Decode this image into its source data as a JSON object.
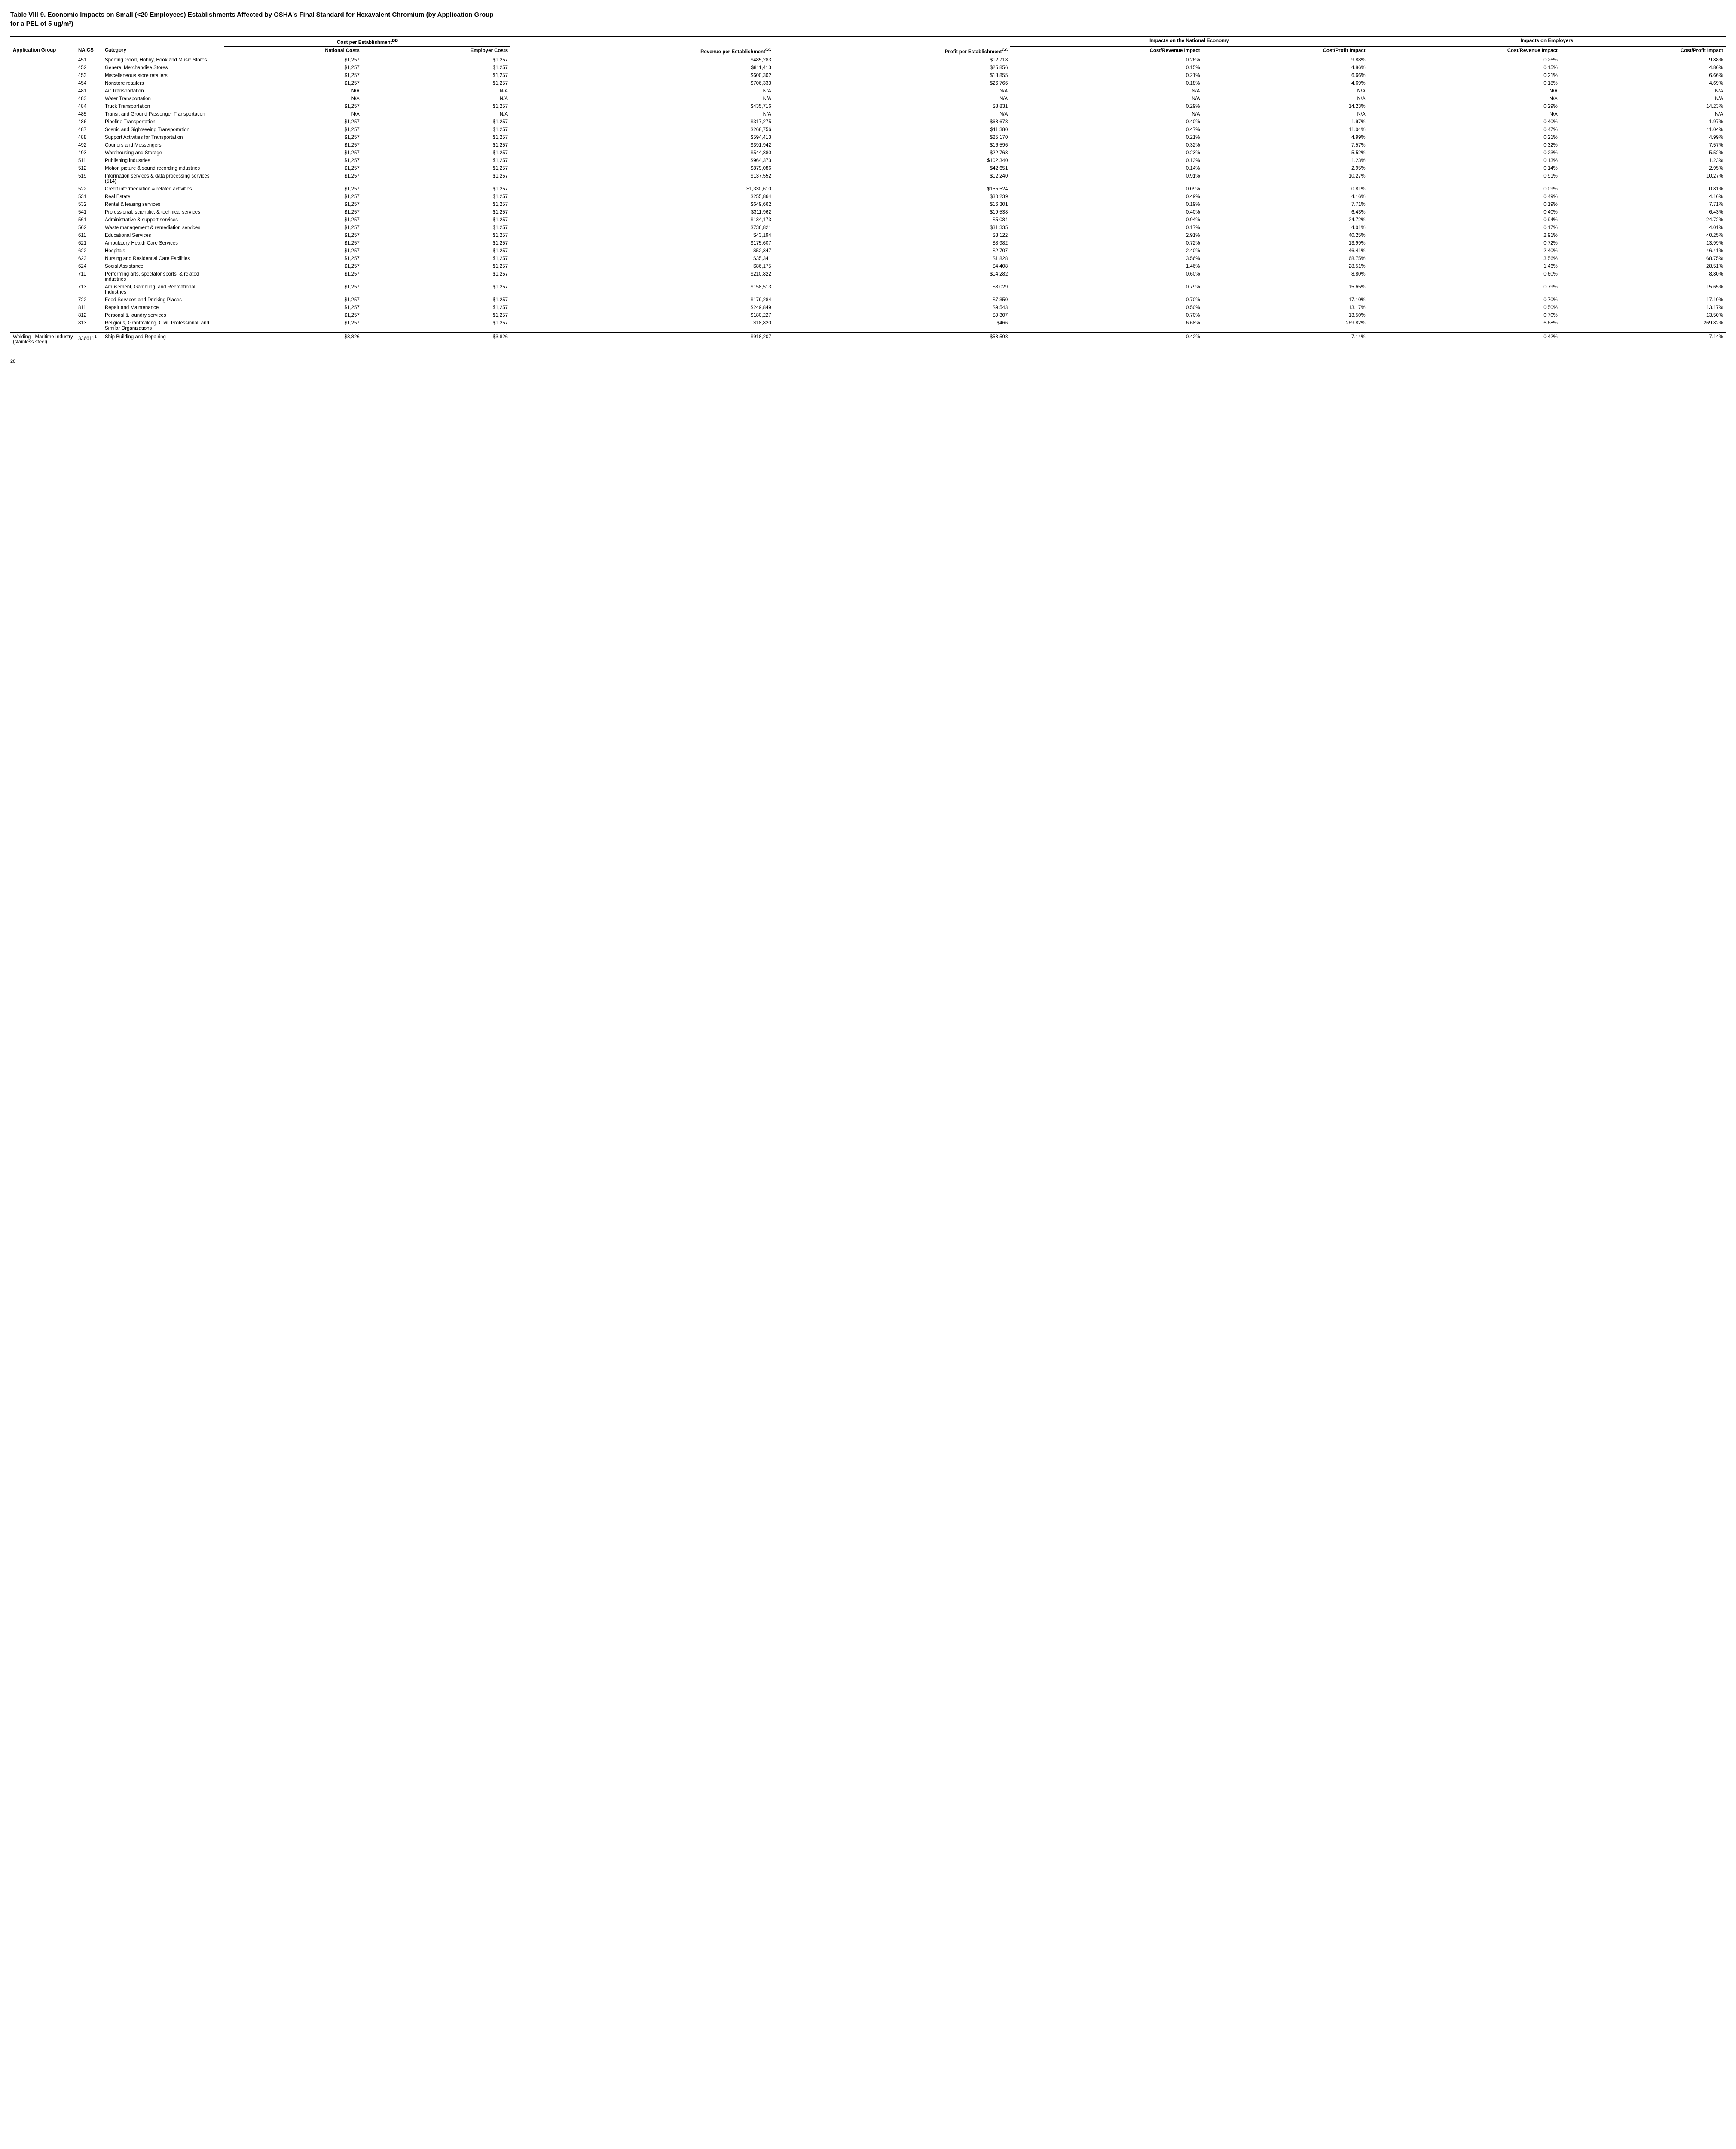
{
  "title_line1": "Table VIII-9.  Economic Impacts on Small (<20 Employees) Establishments Affected by OSHA's Final Standard for Hexavalent Chromium (by Application Group",
  "title_line2": "for a PEL of 5 ug/m³)",
  "page_number": "28",
  "group_headers": {
    "cost_per_est": "Cost per Establishment",
    "cost_per_est_sup": "BB",
    "impacts_national": "Impacts on the National Economy",
    "impacts_employers": "Impacts on Employers"
  },
  "col_headers": {
    "appgroup": "Application Group",
    "naics": "NAICS",
    "category": "Category",
    "national_costs": "National Costs",
    "employer_costs": "Employer Costs",
    "revenue_per_est": "Revenue per Establishment",
    "revenue_per_est_sup": "CC",
    "profit_per_est": "Profit per Establishment",
    "profit_per_est_sup": "CC",
    "cost_rev_impact_n": "Cost/Revenue Impact",
    "cost_profit_impact_n": "Cost/Profit Impact",
    "cost_rev_impact_e": "Cost/Revenue Impact",
    "cost_profit_impact_e": "Cost/Profit Impact"
  },
  "rows": [
    {
      "appgroup": "",
      "naics": "451",
      "category": "Sporting Good, Hobby, Book and Music Stores",
      "nat": "$1,257",
      "emp": "$1,257",
      "rev": "$485,283",
      "profit": "$12,718",
      "crn": "0.26%",
      "cpn": "9.88%",
      "cre": "0.26%",
      "cpe": "9.88%"
    },
    {
      "appgroup": "",
      "naics": "452",
      "category": "General Merchandise Stores",
      "nat": "$1,257",
      "emp": "$1,257",
      "rev": "$811,413",
      "profit": "$25,856",
      "crn": "0.15%",
      "cpn": "4.86%",
      "cre": "0.15%",
      "cpe": "4.86%"
    },
    {
      "appgroup": "",
      "naics": "453",
      "category": "Miscellaneous store retailers",
      "nat": "$1,257",
      "emp": "$1,257",
      "rev": "$600,302",
      "profit": "$18,855",
      "crn": "0.21%",
      "cpn": "6.66%",
      "cre": "0.21%",
      "cpe": "6.66%"
    },
    {
      "appgroup": "",
      "naics": "454",
      "category": "Nonstore retailers",
      "nat": "$1,257",
      "emp": "$1,257",
      "rev": "$706,333",
      "profit": "$26,766",
      "crn": "0.18%",
      "cpn": "4.69%",
      "cre": "0.18%",
      "cpe": "4.69%"
    },
    {
      "appgroup": "",
      "naics": "481",
      "category": "Air Transportation",
      "nat": "N/A",
      "emp": "N/A",
      "rev": "N/A",
      "profit": "N/A",
      "crn": "N/A",
      "cpn": "N/A",
      "cre": "N/A",
      "cpe": "N/A"
    },
    {
      "appgroup": "",
      "naics": "483",
      "category": "Water Transportation",
      "nat": "N/A",
      "emp": "N/A",
      "rev": "N/A",
      "profit": "N/A",
      "crn": "N/A",
      "cpn": "N/A",
      "cre": "N/A",
      "cpe": "N/A"
    },
    {
      "appgroup": "",
      "naics": "484",
      "category": "Truck Transportation",
      "nat": "$1,257",
      "emp": "$1,257",
      "rev": "$435,716",
      "profit": "$8,831",
      "crn": "0.29%",
      "cpn": "14.23%",
      "cre": "0.29%",
      "cpe": "14.23%"
    },
    {
      "appgroup": "",
      "naics": "485",
      "category": "Transit and Ground Passenger Transportation",
      "nat": "N/A",
      "emp": "N/A",
      "rev": "N/A",
      "profit": "N/A",
      "crn": "N/A",
      "cpn": "N/A",
      "cre": "N/A",
      "cpe": "N/A"
    },
    {
      "appgroup": "",
      "naics": "486",
      "category": "Pipeline Transportation",
      "nat": "$1,257",
      "emp": "$1,257",
      "rev": "$317,275",
      "profit": "$63,678",
      "crn": "0.40%",
      "cpn": "1.97%",
      "cre": "0.40%",
      "cpe": "1.97%"
    },
    {
      "appgroup": "",
      "naics": "487",
      "category": "Scenic and Sightseeing Transportation",
      "nat": "$1,257",
      "emp": "$1,257",
      "rev": "$268,756",
      "profit": "$11,380",
      "crn": "0.47%",
      "cpn": "11.04%",
      "cre": "0.47%",
      "cpe": "11.04%"
    },
    {
      "appgroup": "",
      "naics": "488",
      "category": "Support Activities for Transportation",
      "nat": "$1,257",
      "emp": "$1,257",
      "rev": "$594,413",
      "profit": "$25,170",
      "crn": "0.21%",
      "cpn": "4.99%",
      "cre": "0.21%",
      "cpe": "4.99%"
    },
    {
      "appgroup": "",
      "naics": "492",
      "category": "Couriers and Messengers",
      "nat": "$1,257",
      "emp": "$1,257",
      "rev": "$391,942",
      "profit": "$16,596",
      "crn": "0.32%",
      "cpn": "7.57%",
      "cre": "0.32%",
      "cpe": "7.57%"
    },
    {
      "appgroup": "",
      "naics": "493",
      "category": "Warehousing and Storage",
      "nat": "$1,257",
      "emp": "$1,257",
      "rev": "$544,880",
      "profit": "$22,763",
      "crn": "0.23%",
      "cpn": "5.52%",
      "cre": "0.23%",
      "cpe": "5.52%"
    },
    {
      "appgroup": "",
      "naics": "511",
      "category": "Publishing industries",
      "nat": "$1,257",
      "emp": "$1,257",
      "rev": "$964,373",
      "profit": "$102,340",
      "crn": "0.13%",
      "cpn": "1.23%",
      "cre": "0.13%",
      "cpe": "1.23%"
    },
    {
      "appgroup": "",
      "naics": "512",
      "category": "Motion picture & sound recording industries",
      "nat": "$1,257",
      "emp": "$1,257",
      "rev": "$879,086",
      "profit": "$42,651",
      "crn": "0.14%",
      "cpn": "2.95%",
      "cre": "0.14%",
      "cpe": "2.95%"
    },
    {
      "appgroup": "",
      "naics": "519",
      "category": "Information services & data processing services (514)",
      "nat": "$1,257",
      "emp": "$1,257",
      "rev": "$137,552",
      "profit": "$12,240",
      "crn": "0.91%",
      "cpn": "10.27%",
      "cre": "0.91%",
      "cpe": "10.27%"
    },
    {
      "appgroup": "",
      "naics": "522",
      "category": "Credit intermediation & related activities",
      "nat": "$1,257",
      "emp": "$1,257",
      "rev": "$1,330,610",
      "profit": "$155,524",
      "crn": "0.09%",
      "cpn": "0.81%",
      "cre": "0.09%",
      "cpe": "0.81%"
    },
    {
      "appgroup": "",
      "naics": "531",
      "category": "Real Estate",
      "nat": "$1,257",
      "emp": "$1,257",
      "rev": "$255,864",
      "profit": "$30,239",
      "crn": "0.49%",
      "cpn": "4.16%",
      "cre": "0.49%",
      "cpe": "4.16%"
    },
    {
      "appgroup": "",
      "naics": "532",
      "category": "Rental & leasing services",
      "nat": "$1,257",
      "emp": "$1,257",
      "rev": "$649,662",
      "profit": "$16,301",
      "crn": "0.19%",
      "cpn": "7.71%",
      "cre": "0.19%",
      "cpe": "7.71%"
    },
    {
      "appgroup": "",
      "naics": "541",
      "category": "Professional, scientific, & technical services",
      "nat": "$1,257",
      "emp": "$1,257",
      "rev": "$311,962",
      "profit": "$19,538",
      "crn": "0.40%",
      "cpn": "6.43%",
      "cre": "0.40%",
      "cpe": "6.43%"
    },
    {
      "appgroup": "",
      "naics": "561",
      "category": "Administrative & support services",
      "nat": "$1,257",
      "emp": "$1,257",
      "rev": "$134,173",
      "profit": "$5,084",
      "crn": "0.94%",
      "cpn": "24.72%",
      "cre": "0.94%",
      "cpe": "24.72%"
    },
    {
      "appgroup": "",
      "naics": "562",
      "category": "Waste management & remediation services",
      "nat": "$1,257",
      "emp": "$1,257",
      "rev": "$736,821",
      "profit": "$31,335",
      "crn": "0.17%",
      "cpn": "4.01%",
      "cre": "0.17%",
      "cpe": "4.01%"
    },
    {
      "appgroup": "",
      "naics": "611",
      "category": "Educational Services",
      "nat": "$1,257",
      "emp": "$1,257",
      "rev": "$43,194",
      "profit": "$3,122",
      "crn": "2.91%",
      "cpn": "40.25%",
      "cre": "2.91%",
      "cpe": "40.25%"
    },
    {
      "appgroup": "",
      "naics": "621",
      "category": "Ambulatory Health Care Services",
      "nat": "$1,257",
      "emp": "$1,257",
      "rev": "$175,607",
      "profit": "$8,982",
      "crn": "0.72%",
      "cpn": "13.99%",
      "cre": "0.72%",
      "cpe": "13.99%"
    },
    {
      "appgroup": "",
      "naics": "622",
      "category": "Hospitals",
      "nat": "$1,257",
      "emp": "$1,257",
      "rev": "$52,347",
      "profit": "$2,707",
      "crn": "2.40%",
      "cpn": "46.41%",
      "cre": "2.40%",
      "cpe": "46.41%"
    },
    {
      "appgroup": "",
      "naics": "623",
      "category": "Nursing and Residential Care Facilities",
      "nat": "$1,257",
      "emp": "$1,257",
      "rev": "$35,341",
      "profit": "$1,828",
      "crn": "3.56%",
      "cpn": "68.75%",
      "cre": "3.56%",
      "cpe": "68.75%"
    },
    {
      "appgroup": "",
      "naics": "624",
      "category": "Social Assistance",
      "nat": "$1,257",
      "emp": "$1,257",
      "rev": "$86,175",
      "profit": "$4,408",
      "crn": "1.46%",
      "cpn": "28.51%",
      "cre": "1.46%",
      "cpe": "28.51%"
    },
    {
      "appgroup": "",
      "naics": "711",
      "category": "Performing arts, spectator sports, & related industries",
      "nat": "$1,257",
      "emp": "$1,257",
      "rev": "$210,822",
      "profit": "$14,282",
      "crn": "0.60%",
      "cpn": "8.80%",
      "cre": "0.60%",
      "cpe": "8.80%"
    },
    {
      "appgroup": "",
      "naics": "713",
      "category": "Amusement, Gambling, and Recreational Industries",
      "nat": "$1,257",
      "emp": "$1,257",
      "rev": "$158,513",
      "profit": "$8,029",
      "crn": "0.79%",
      "cpn": "15.65%",
      "cre": "0.79%",
      "cpe": "15.65%"
    },
    {
      "appgroup": "",
      "naics": "722",
      "category": "Food Services and Drinking Places",
      "nat": "$1,257",
      "emp": "$1,257",
      "rev": "$179,284",
      "profit": "$7,350",
      "crn": "0.70%",
      "cpn": "17.10%",
      "cre": "0.70%",
      "cpe": "17.10%"
    },
    {
      "appgroup": "",
      "naics": "811",
      "category": "Repair and Maintenance",
      "nat": "$1,257",
      "emp": "$1,257",
      "rev": "$249,849",
      "profit": "$9,543",
      "crn": "0.50%",
      "cpn": "13.17%",
      "cre": "0.50%",
      "cpe": "13.17%"
    },
    {
      "appgroup": "",
      "naics": "812",
      "category": "Personal & laundry services",
      "nat": "$1,257",
      "emp": "$1,257",
      "rev": "$180,227",
      "profit": "$9,307",
      "crn": "0.70%",
      "cpn": "13.50%",
      "cre": "0.70%",
      "cpe": "13.50%"
    },
    {
      "appgroup": "",
      "naics": "813",
      "category": "Religious, Grantmaking, Civil, Professional, and Similar Organizations",
      "nat": "$1,257",
      "emp": "$1,257",
      "rev": "$18,820",
      "profit": "$466",
      "crn": "6.68%",
      "cpn": "269.82%",
      "cre": "6.68%",
      "cpe": "269.82%"
    }
  ],
  "subtotal_row": {
    "appgroup": "Welding - Maritime Industry (stainless steel)",
    "naics": "336611",
    "naics_sup": "1",
    "category": "Ship Building and Repairing",
    "nat": "$3,826",
    "emp": "$3,826",
    "rev": "$918,207",
    "profit": "$53,598",
    "crn": "0.42%",
    "cpn": "7.14%",
    "cre": "0.42%",
    "cpe": "7.14%"
  }
}
